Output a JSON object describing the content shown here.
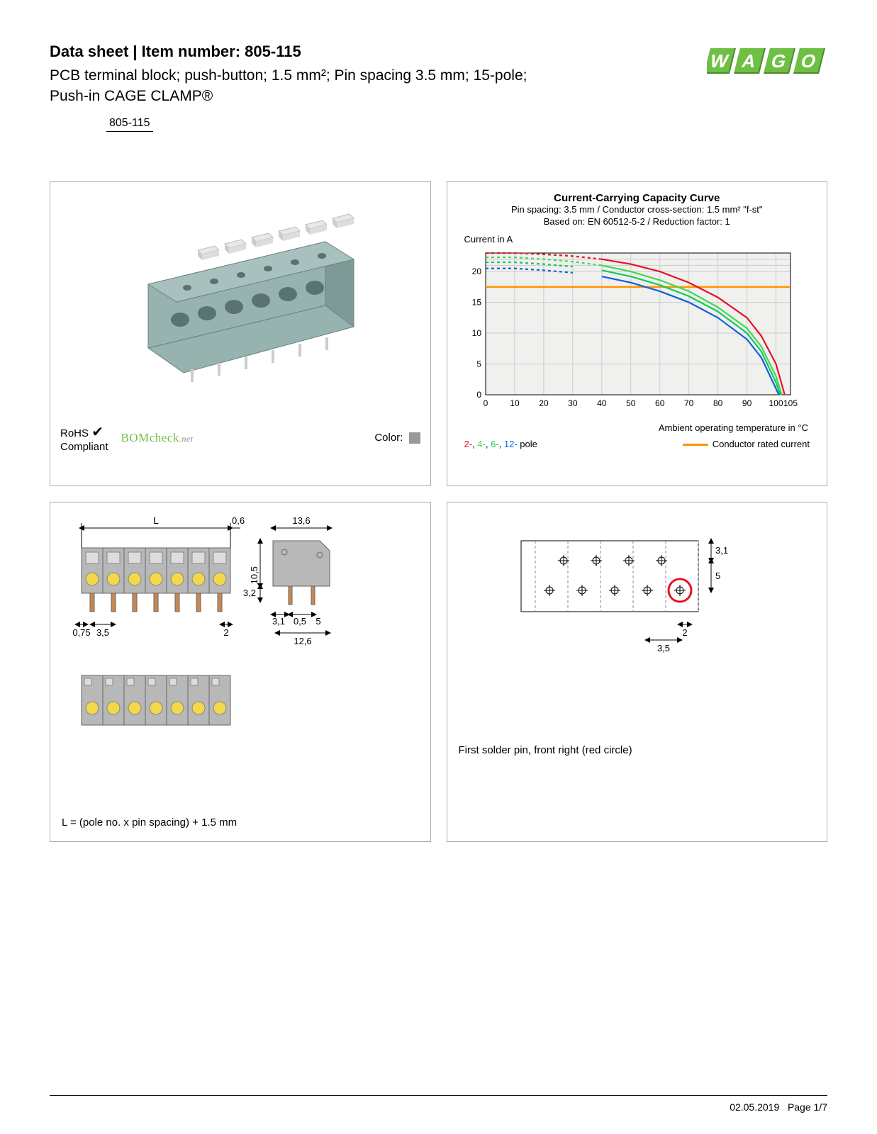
{
  "header": {
    "doc_type": "Data sheet",
    "separator": "  |  ",
    "item_label": "Item number:",
    "item_number": "805-115",
    "description_line1": "PCB terminal block; push-button; 1.5 mm²; Pin spacing 3.5 mm; 15-pole;",
    "description_line2": "Push-in CAGE CLAMP®",
    "item_under": "805-115"
  },
  "logo": {
    "text": "WAGO",
    "primary_color": "#6fbf44",
    "shadow_color": "#4a8a2e"
  },
  "product_panel": {
    "rohs_label": "RoHS",
    "compliant_label": "Compliant",
    "bomcheck_label": "BOMcheck",
    "bomcheck_suffix": ".net",
    "color_label": "Color:",
    "swatch_color": "#999999",
    "block_color": "#96b3b0",
    "button_color": "#e8e8e8",
    "hole_color": "#5a7270"
  },
  "chart": {
    "title": "Current-Carrying Capacity Curve",
    "sub1": "Pin spacing: 3.5 mm / Conductor cross-section: 1.5 mm² \"f-st\"",
    "sub2": "Based on: EN 60512-5-2 / Reduction factor: 1",
    "ylabel": "Current in A",
    "xlabel": "Ambient operating temperature in °C",
    "grid_bg": "#f0f0ee",
    "grid_line": "#cccccc",
    "axis_color": "#000000",
    "rated_line_color": "#ff9500",
    "rated_current": 17.5,
    "xlim": [
      0,
      105
    ],
    "ylim": [
      0,
      23
    ],
    "xticks": [
      0,
      10,
      20,
      30,
      40,
      50,
      60,
      70,
      80,
      90,
      100,
      105
    ],
    "yticks": [
      0,
      5,
      10,
      15,
      20
    ],
    "series": [
      {
        "name": "2-pole",
        "color": "#e81123",
        "dash_break": 40,
        "points": [
          [
            0,
            23
          ],
          [
            10,
            23
          ],
          [
            20,
            22.8
          ],
          [
            30,
            22.5
          ],
          [
            40,
            22
          ],
          [
            50,
            21.2
          ],
          [
            60,
            20
          ],
          [
            70,
            18.2
          ],
          [
            80,
            15.8
          ],
          [
            90,
            12.5
          ],
          [
            95,
            9.5
          ],
          [
            100,
            5
          ],
          [
            103,
            0
          ]
        ]
      },
      {
        "name": "4-pole",
        "color": "#3fd94f",
        "dash_break": 40,
        "points": [
          [
            0,
            22.3
          ],
          [
            10,
            22.3
          ],
          [
            20,
            22
          ],
          [
            30,
            21.6
          ],
          [
            40,
            21
          ],
          [
            50,
            20
          ],
          [
            60,
            18.6
          ],
          [
            70,
            16.8
          ],
          [
            80,
            14.2
          ],
          [
            90,
            10.8
          ],
          [
            95,
            7.8
          ],
          [
            100,
            3
          ],
          [
            102,
            0
          ]
        ]
      },
      {
        "name": "6-pole",
        "color": "#12c95e",
        "dash_break": 38,
        "points": [
          [
            0,
            21.5
          ],
          [
            10,
            21.5
          ],
          [
            20,
            21.2
          ],
          [
            30,
            20.8
          ],
          [
            40,
            20.2
          ],
          [
            50,
            19.2
          ],
          [
            60,
            17.8
          ],
          [
            70,
            16
          ],
          [
            80,
            13.5
          ],
          [
            90,
            10
          ],
          [
            95,
            7
          ],
          [
            100,
            2
          ],
          [
            101.5,
            0
          ]
        ]
      },
      {
        "name": "12-pole",
        "color": "#1060d6",
        "dash_break": 35,
        "points": [
          [
            0,
            20.5
          ],
          [
            10,
            20.5
          ],
          [
            20,
            20.2
          ],
          [
            30,
            19.8
          ],
          [
            40,
            19.2
          ],
          [
            50,
            18.2
          ],
          [
            60,
            16.8
          ],
          [
            70,
            15
          ],
          [
            80,
            12.5
          ],
          [
            90,
            9
          ],
          [
            95,
            6
          ],
          [
            100,
            1
          ],
          [
            101,
            0
          ]
        ]
      }
    ],
    "legend_poles": [
      {
        "text": "2-",
        "color": "#e81123"
      },
      {
        "text": "4-",
        "color": "#3fd94f"
      },
      {
        "text": "6-",
        "color": "#12c95e"
      },
      {
        "text": "12-",
        "color": "#1060d6"
      }
    ],
    "legend_pole_suffix": " pole",
    "legend_rated": "Conductor rated current"
  },
  "dimensions_panel": {
    "labels": {
      "L": "L",
      "v_0_6": "0,6",
      "v_13_6": "13,6",
      "v_10_5": "10,5",
      "v_3_2": "3,2",
      "v_0_75": "0,75",
      "v_3_5": "3,5",
      "v_2": "2",
      "v_3_1": "3,1",
      "v_0_5": "0,5",
      "v_5": "5",
      "v_12_6": "12,6"
    },
    "caption": "L = (pole no. x pin spacing) + 1.5 mm",
    "body_color": "#b8b8b8",
    "pin_color": "#c88850",
    "contact_color": "#f2d84a"
  },
  "footprint_panel": {
    "labels": {
      "v_3_1": "3,1",
      "v_5": "5",
      "v_2": "2",
      "v_3_5": "3,5"
    },
    "caption": "First solder pin, front right (red circle)",
    "circle_color": "#e81123",
    "dash_color": "#888888"
  },
  "footer": {
    "date": "02.05.2019",
    "page": "Page 1/7"
  }
}
